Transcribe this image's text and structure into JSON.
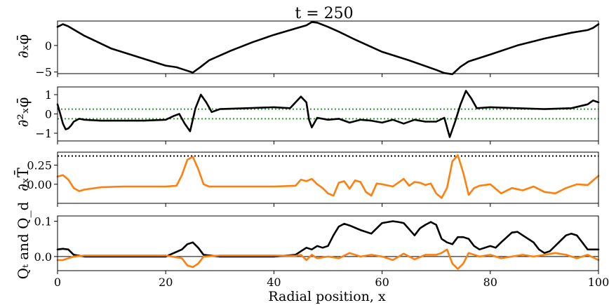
{
  "chart_data": [
    {
      "type": "line",
      "title": "t = 250",
      "ylabel": "∂ₓφ̄",
      "xlim": [
        0,
        100
      ],
      "ylim": [
        -5.3,
        4.6
      ],
      "yticks": [
        0,
        -5
      ],
      "ytick_labels": [
        "0",
        "−5"
      ],
      "series": [
        {
          "color": "#000000",
          "x": [
            0,
            1,
            2,
            5,
            10,
            15,
            20,
            22,
            23.5,
            25,
            26.5,
            28,
            32,
            36,
            40,
            44,
            46,
            47,
            48,
            49,
            50,
            52,
            55,
            60,
            65,
            70,
            71.5,
            73,
            74.5,
            76,
            80,
            85,
            90,
            95,
            98,
            99,
            100
          ],
          "y": [
            3.5,
            4.0,
            3.6,
            1.8,
            -0.6,
            -2.2,
            -3.8,
            -4.1,
            -4.6,
            -5.1,
            -4.0,
            -2.8,
            -1.0,
            0.6,
            2.0,
            3.2,
            3.8,
            4.4,
            4.3,
            3.9,
            3.5,
            2.6,
            1.1,
            -1.2,
            -2.8,
            -4.6,
            -5.2,
            -5.4,
            -4.0,
            -3.0,
            -1.7,
            0.0,
            1.3,
            2.4,
            2.9,
            3.3,
            4.0
          ]
        }
      ]
    },
    {
      "type": "line",
      "ylabel": "∂²ₓφ̄",
      "xlim": [
        0,
        100
      ],
      "ylim": [
        -1.4,
        1.4
      ],
      "yticks": [
        1,
        0,
        -1
      ],
      "ytick_labels": [
        "1",
        "0",
        "−1"
      ],
      "series": [
        {
          "color": "#000000",
          "x": [
            0,
            0.5,
            1,
            1.5,
            2,
            2.5,
            3,
            4,
            5,
            8,
            12,
            16,
            20,
            21.5,
            22.5,
            23.5,
            24.5,
            25.5,
            26.5,
            27.5,
            28.5,
            30,
            35,
            40,
            43,
            44,
            45,
            46,
            46.5,
            47,
            48,
            50,
            52,
            54,
            56,
            58,
            60,
            62,
            64,
            66,
            68,
            70,
            71.5,
            72.5,
            73.5,
            74.5,
            75.5,
            76.5,
            77.5,
            80,
            85,
            90,
            95,
            98,
            99,
            100
          ],
          "y": [
            0.5,
            0.0,
            -0.5,
            -0.8,
            -0.75,
            -0.6,
            -0.4,
            -0.25,
            -0.3,
            -0.35,
            -0.35,
            -0.35,
            -0.3,
            -0.1,
            0.0,
            -0.5,
            -0.9,
            0.3,
            1.0,
            0.6,
            0.1,
            0.25,
            0.3,
            0.35,
            0.3,
            0.6,
            0.9,
            0.6,
            -0.3,
            -0.7,
            -0.2,
            -0.3,
            -0.25,
            -0.45,
            -0.3,
            -0.35,
            -0.45,
            -0.3,
            -0.5,
            -0.3,
            -0.4,
            -0.4,
            -0.2,
            -1.2,
            -0.4,
            0.5,
            1.2,
            0.8,
            0.3,
            0.35,
            0.3,
            0.25,
            0.3,
            0.5,
            0.7,
            0.6
          ]
        }
      ],
      "hlines": [
        {
          "y": 0.25,
          "style": "dotted",
          "color": "#2ca02c"
        },
        {
          "y": -0.25,
          "style": "dotted",
          "color": "#2ca02c"
        }
      ]
    },
    {
      "type": "line",
      "ylabel": "∂ₓT̄",
      "xlim": [
        0,
        100
      ],
      "ylim": [
        -0.25,
        0.42
      ],
      "yticks": [
        0.25,
        0.0
      ],
      "ytick_labels": [
        "0.25",
        "0.00"
      ],
      "series": [
        {
          "color": "#ff7f0e",
          "x": [
            0,
            1,
            2,
            3,
            4,
            5,
            8,
            12,
            16,
            20,
            22,
            23,
            24,
            25,
            26,
            27,
            28,
            30,
            35,
            40,
            44,
            45,
            46,
            47,
            48,
            49,
            50,
            51,
            52,
            53,
            54,
            55,
            56,
            57,
            58,
            59,
            60,
            62,
            64,
            65,
            66,
            67,
            68,
            69,
            70,
            71,
            72,
            73,
            74,
            75,
            76,
            77,
            78,
            80,
            82,
            84,
            86,
            88,
            90,
            92,
            94,
            96,
            98,
            100
          ],
          "y": [
            0.1,
            0.12,
            0.06,
            -0.05,
            -0.09,
            -0.07,
            -0.04,
            -0.03,
            -0.03,
            -0.03,
            -0.02,
            0.12,
            0.32,
            0.36,
            0.2,
            0.0,
            -0.03,
            -0.03,
            -0.03,
            -0.03,
            -0.02,
            0.06,
            0.04,
            0.07,
            0.0,
            -0.05,
            -0.12,
            -0.15,
            0.02,
            0.04,
            -0.06,
            0.05,
            0.03,
            -0.1,
            -0.15,
            0.01,
            0.0,
            -0.03,
            0.07,
            -0.02,
            0.03,
            0.02,
            -0.01,
            0.01,
            -0.12,
            -0.18,
            -0.05,
            0.3,
            0.38,
            0.15,
            -0.14,
            -0.05,
            -0.02,
            0.0,
            -0.12,
            -0.05,
            -0.08,
            -0.03,
            -0.1,
            -0.12,
            -0.05,
            0.0,
            -0.01,
            0.11
          ]
        }
      ],
      "hlines": [
        {
          "y": 0.37,
          "style": "dotted",
          "color": "#000000"
        }
      ]
    },
    {
      "type": "line",
      "ylabel": "Qₜ and Q_d",
      "xlabel": "Radial position, x",
      "xlim": [
        0,
        100
      ],
      "ylim": [
        -0.04,
        0.115
      ],
      "xticks": [
        0,
        20,
        40,
        60,
        80,
        100
      ],
      "yticks": [
        0.1,
        0.0
      ],
      "ytick_labels": [
        "0.1",
        "0.0"
      ],
      "series": [
        {
          "color": "#000000",
          "x": [
            0,
            1,
            2,
            3,
            5,
            10,
            20,
            23,
            24,
            25,
            26,
            27,
            30,
            40,
            44,
            45,
            46,
            47,
            48,
            49,
            50,
            51,
            52,
            53,
            54,
            56,
            58,
            60,
            62,
            63,
            64,
            66,
            67,
            68,
            69,
            70,
            71,
            72,
            73,
            74,
            75,
            76,
            77,
            78,
            79,
            80,
            81,
            82,
            84,
            85,
            86,
            87,
            88,
            89,
            90,
            91,
            92,
            93,
            94,
            95,
            96,
            97,
            98,
            100
          ],
          "y": [
            0.02,
            0.022,
            0.02,
            0.005,
            0.0,
            0.0,
            0.0,
            0.02,
            0.035,
            0.04,
            0.025,
            0.005,
            0.0,
            0.0,
            0.005,
            0.015,
            0.025,
            0.02,
            0.03,
            0.025,
            0.03,
            0.06,
            0.085,
            0.093,
            0.088,
            0.075,
            0.065,
            0.095,
            0.1,
            0.098,
            0.095,
            0.06,
            0.08,
            0.09,
            0.098,
            0.09,
            0.05,
            0.04,
            0.035,
            0.055,
            0.055,
            0.05,
            0.03,
            0.02,
            0.025,
            0.03,
            0.025,
            0.04,
            0.068,
            0.07,
            0.06,
            0.05,
            0.04,
            0.02,
            0.01,
            0.015,
            0.03,
            0.045,
            0.06,
            0.065,
            0.06,
            0.04,
            0.02,
            0.02
          ]
        },
        {
          "color": "#ff7f0e",
          "x": [
            0,
            1,
            2,
            3,
            5,
            10,
            20,
            23,
            24,
            25,
            26,
            27,
            30,
            40,
            44,
            45,
            46,
            47,
            48,
            50,
            52,
            54,
            56,
            58,
            60,
            62,
            64,
            66,
            68,
            70,
            71,
            72,
            73,
            74,
            75,
            76,
            78,
            80,
            82,
            84,
            86,
            88,
            90,
            92,
            94,
            96,
            98,
            100
          ],
          "y": [
            -0.01,
            -0.01,
            -0.005,
            0.0,
            0.003,
            0.003,
            0.003,
            -0.005,
            -0.025,
            -0.03,
            -0.02,
            0.0,
            0.003,
            0.003,
            0.002,
            0.005,
            -0.01,
            0.005,
            -0.005,
            0.0,
            -0.005,
            0.01,
            0.0,
            0.005,
            0.0,
            -0.01,
            0.008,
            -0.008,
            0.005,
            0.005,
            0.01,
            0.02,
            -0.02,
            -0.035,
            -0.02,
            0.01,
            0.0,
            0.005,
            -0.005,
            0.0,
            0.005,
            0.0,
            0.005,
            0.01,
            0.005,
            -0.005,
            0.005,
            -0.01
          ]
        }
      ],
      "hlines": [
        {
          "y": 0.0,
          "style": "solid",
          "color": "#000000"
        }
      ]
    }
  ]
}
